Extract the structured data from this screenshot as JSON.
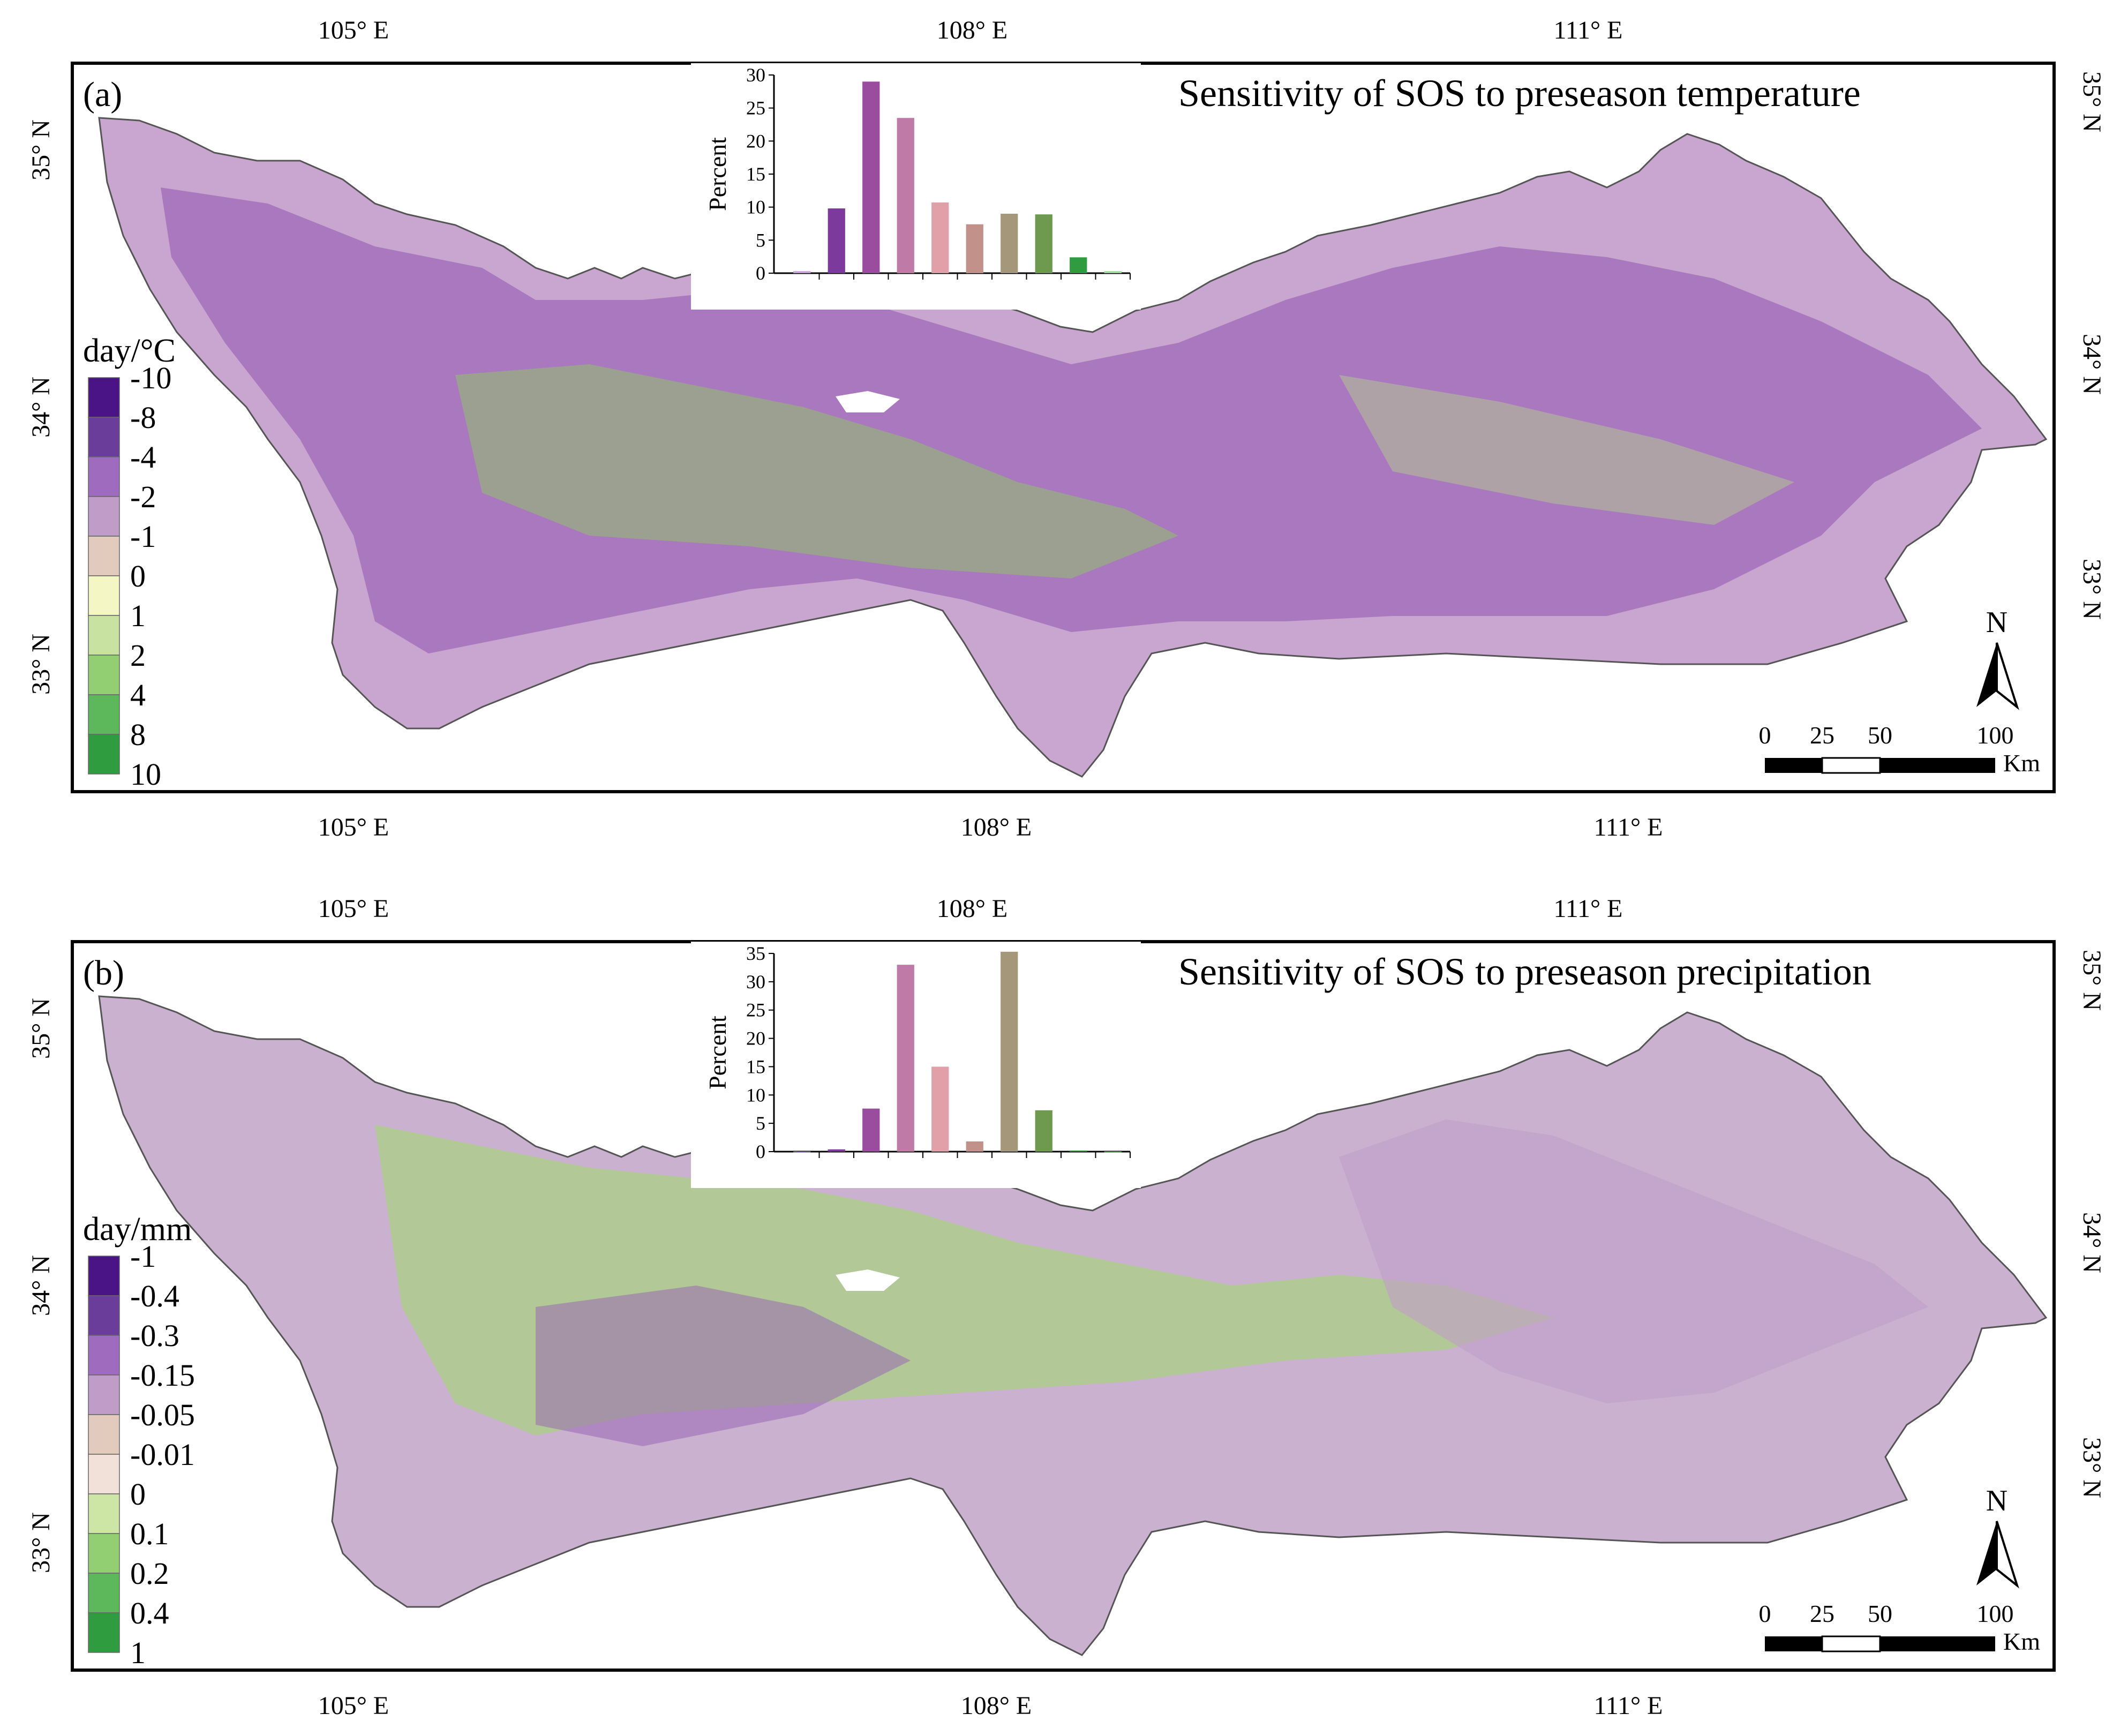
{
  "panels": [
    {
      "letter": "(a)",
      "title": "Sensitivity of SOS to preseason temperature",
      "legend": {
        "unit": "day/°C",
        "labels": [
          "-10",
          "-8",
          "-4",
          "-2",
          "-1",
          "0",
          "1",
          "2",
          "4",
          "8",
          "10"
        ],
        "colors": [
          "#4a1486",
          "#6a3d9a",
          "#9e6bbf",
          "#c09cc9",
          "#e2cbbc",
          "#f4f7c4",
          "#c8e3a1",
          "#92cf72",
          "#5cb85b",
          "#2e9c3f"
        ]
      },
      "top_lon_labels": [
        "105° E",
        "108° E",
        "111° E"
      ],
      "bottom_lon_labels": [
        "105° E",
        "108° E",
        "111° E"
      ],
      "left_lat_labels": [
        "35° N",
        "34° N",
        "33° N"
      ],
      "right_lat_labels": [
        "35° N",
        "34° N",
        "33° N"
      ],
      "scalebar": {
        "ticks": [
          "0",
          "25",
          "50",
          "100"
        ],
        "unit": "Km"
      },
      "north_label": "N",
      "chart_data": {
        "type": "bar",
        "ylabel": "Percent",
        "ylim": [
          0,
          30
        ],
        "yticks": [
          "0",
          "5",
          "10",
          "15",
          "20",
          "25",
          "30"
        ],
        "values": [
          0.3,
          9.8,
          29,
          23.5,
          10.7,
          7.4,
          9,
          8.9,
          2.4,
          0.3
        ],
        "colors": [
          "#c8a2d8",
          "#7b3a9c",
          "#9a4c9e",
          "#c07aa8",
          "#e1a0a8",
          "#c1918a",
          "#a5987a",
          "#6d9a4f",
          "#2e9c3f",
          "#a0d8a0"
        ]
      }
    },
    {
      "letter": "(b)",
      "title": "Sensitivity of SOS to preseason precipitation",
      "legend": {
        "unit": "day/mm",
        "labels": [
          "-1",
          "-0.4",
          "-0.3",
          "-0.15",
          "-0.05",
          "-0.01",
          "0",
          "0.1",
          "0.2",
          "0.4",
          "1"
        ],
        "colors": [
          "#4a1486",
          "#6a3d9a",
          "#9e6bbf",
          "#c09cc9",
          "#e2cbbc",
          "#f2e1d8",
          "#cde6a6",
          "#92cf72",
          "#5cb85b",
          "#2e9c3f"
        ]
      },
      "top_lon_labels": [
        "105° E",
        "108° E",
        "111° E"
      ],
      "bottom_lon_labels": [
        "105° E",
        "108° E",
        "111° E"
      ],
      "left_lat_labels": [
        "35° N",
        "34° N",
        "33° N"
      ],
      "right_lat_labels": [
        "35° N",
        "34° N",
        "33° N"
      ],
      "scalebar": {
        "ticks": [
          "0",
          "25",
          "50",
          "100"
        ],
        "unit": "Km"
      },
      "north_label": "N",
      "chart_data": {
        "type": "bar",
        "ylabel": "Percent",
        "ylim": [
          0,
          35
        ],
        "yticks": [
          "0",
          "5",
          "10",
          "15",
          "20",
          "25",
          "30",
          "35"
        ],
        "values": [
          0,
          0.4,
          7.6,
          33,
          15,
          1.8,
          35.3,
          7.3,
          0.2,
          0
        ],
        "colors": [
          "#c8a2d8",
          "#7b3a9c",
          "#9a4c9e",
          "#c07aa8",
          "#e1a0a8",
          "#c1918a",
          "#a5987a",
          "#6d9a4f",
          "#2e9c3f",
          "#a0d8a0"
        ]
      }
    }
  ]
}
